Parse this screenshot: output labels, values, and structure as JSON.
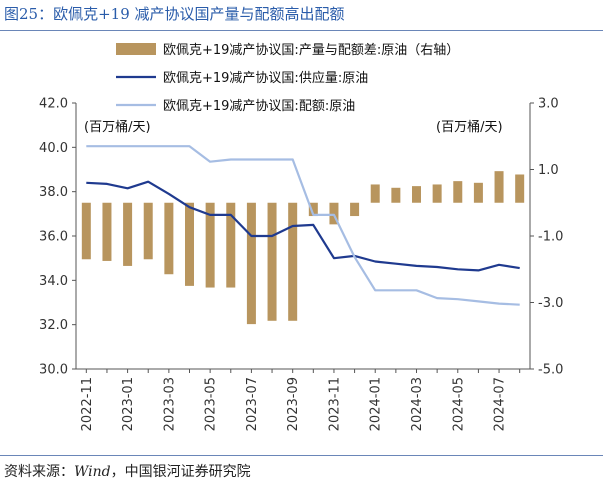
{
  "figure": {
    "title": "图25：欧佩克+19 减产协议国产量与配额高出配额",
    "source_prefix": "资料来源：",
    "source_italic": "Wind",
    "source_suffix": "，中国银河证券研究院"
  },
  "chart_data": {
    "type": "bar+line",
    "title": "",
    "x": [
      "2022-11",
      "2022-12",
      "2023-01",
      "2023-02",
      "2023-03",
      "2023-04",
      "2023-05",
      "2023-06",
      "2023-07",
      "2023-08",
      "2023-09",
      "2023-10",
      "2023-11",
      "2023-12",
      "2024-01",
      "2024-02",
      "2024-03",
      "2024-04",
      "2024-05",
      "2024-06",
      "2024-07",
      "2024-08"
    ],
    "x_tick_labels": [
      "2022-11",
      "2023-01",
      "2023-03",
      "2023-05",
      "2023-07",
      "2023-09",
      "2023-11",
      "2024-01",
      "2024-03",
      "2024-05",
      "2024-07"
    ],
    "left_axis": {
      "label": "(百万桶/天)",
      "ticks": [
        "42.0",
        "40.0",
        "38.0",
        "36.0",
        "34.0",
        "32.0",
        "30.0"
      ],
      "ylim": [
        30,
        42
      ]
    },
    "right_axis": {
      "label": "(百万桶/天)",
      "ticks": [
        "3.0",
        "1.0",
        "-1.0",
        "-3.0",
        "-5.0"
      ],
      "ylim": [
        -5,
        3
      ]
    },
    "series": [
      {
        "name": "欧佩克+19减产协议国:产量与配额差:原油（右轴）",
        "kind": "bar",
        "axis": "right",
        "color": "#b8955e",
        "values": [
          -1.7,
          -1.75,
          -1.9,
          -1.7,
          -2.15,
          -2.5,
          -2.55,
          -2.55,
          -3.65,
          -3.55,
          -3.55,
          -0.4,
          -0.65,
          -0.4,
          0.55,
          0.45,
          0.5,
          0.55,
          0.65,
          0.6,
          0.95,
          0.85
        ]
      },
      {
        "name": "欧佩克+19减产协议国:供应量:原油",
        "kind": "line",
        "axis": "left",
        "color": "#1f3a8f",
        "values": [
          38.4,
          38.35,
          38.15,
          38.45,
          37.9,
          37.3,
          36.95,
          36.95,
          36.0,
          36.0,
          36.45,
          36.5,
          35.0,
          35.1,
          34.85,
          34.75,
          34.65,
          34.6,
          34.5,
          34.45,
          34.7,
          34.55
        ]
      },
      {
        "name": "欧佩克+19减产协议国:配额:原油",
        "kind": "line",
        "axis": "left",
        "color": "#a6bde3",
        "values": [
          40.05,
          40.05,
          40.05,
          40.05,
          40.05,
          40.05,
          39.35,
          39.45,
          39.45,
          39.45,
          39.45,
          36.95,
          36.95,
          35.05,
          33.55,
          33.55,
          33.55,
          33.2,
          33.15,
          33.05,
          32.95,
          32.9
        ]
      }
    ],
    "grid": false,
    "legend_position": "top-right"
  }
}
